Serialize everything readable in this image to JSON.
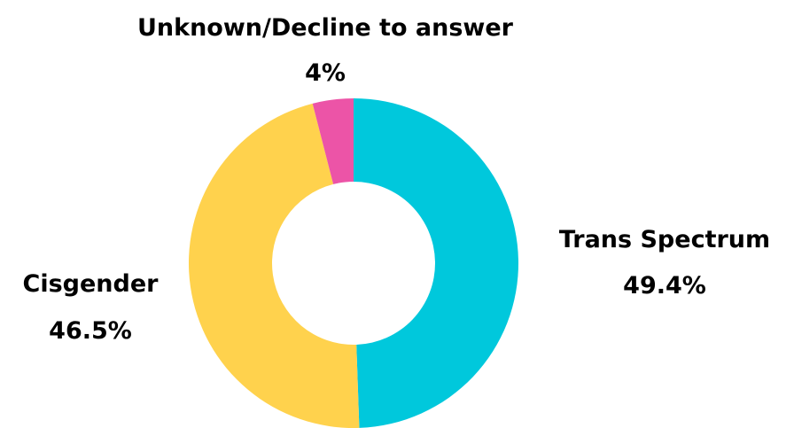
{
  "chart_data": {
    "type": "pie",
    "variant": "donut",
    "title": "",
    "slices": [
      {
        "label": "Trans Spectrum",
        "value": 49.4,
        "value_label": "49.4%",
        "color": "#00C8DC"
      },
      {
        "label": "Cisgender",
        "value": 46.5,
        "value_label": "46.5%",
        "color": "#FFD24D"
      },
      {
        "label": "Unknown/Decline to answer",
        "value": 4,
        "value_label": "4%",
        "color": "#EC54A7"
      }
    ],
    "start": "top",
    "direction": "clockwise",
    "legend": "none"
  }
}
